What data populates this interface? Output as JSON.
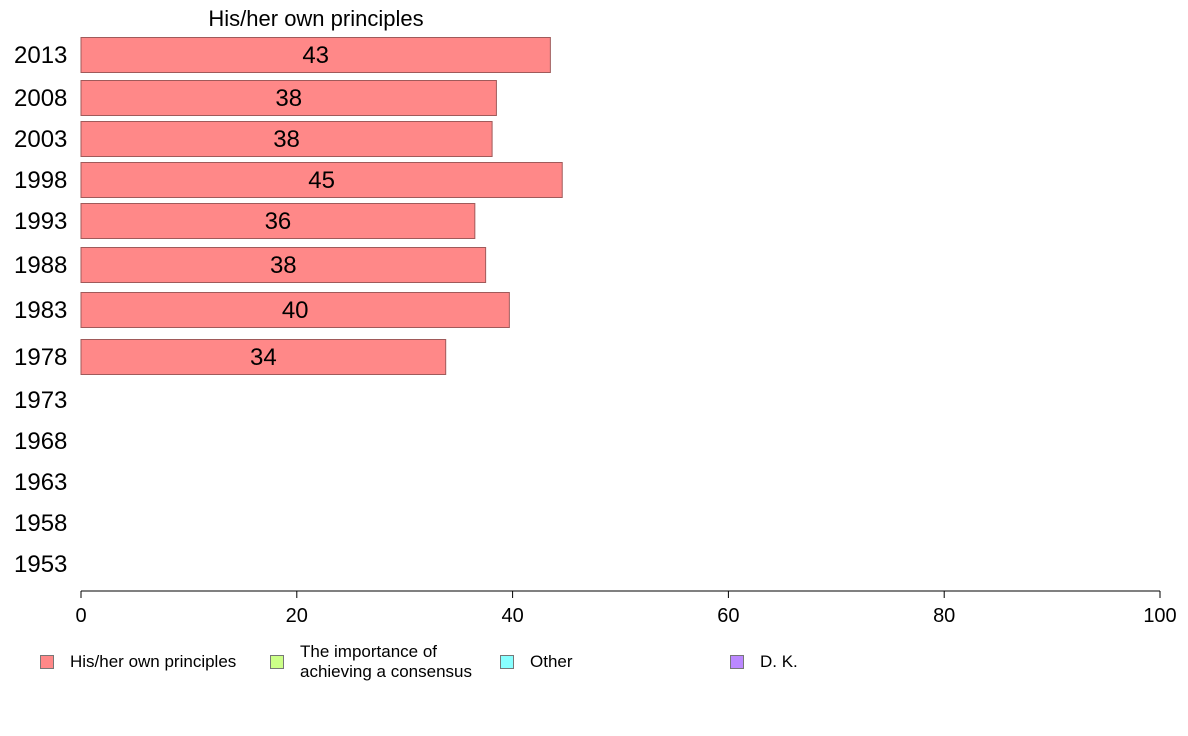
{
  "chart_data": {
    "type": "bar",
    "orientation": "horizontal",
    "title": "",
    "xlabel": "",
    "ylabel": "",
    "xlim": [
      0,
      100
    ],
    "x_ticks": [
      0,
      20,
      40,
      60,
      80,
      100
    ],
    "categories": [
      "2013",
      "2008",
      "2003",
      "1998",
      "1993",
      "1988",
      "1983",
      "1978",
      "1973",
      "1968",
      "1963",
      "1958",
      "1953"
    ],
    "series": [
      {
        "name": "His/her own principles",
        "color": "#ff8888",
        "values": [
          43.5,
          38.5,
          38.1,
          44.6,
          36.5,
          37.5,
          39.7,
          33.8,
          null,
          null,
          null,
          null,
          null
        ],
        "labels": [
          "43",
          "38",
          "38",
          "45",
          "36",
          "38",
          "40",
          "34",
          null,
          null,
          null,
          null,
          null
        ]
      }
    ],
    "grid": false,
    "legend_position": "bottom",
    "legend": [
      {
        "label": "His/her own principles",
        "color": "#ff8888"
      },
      {
        "label": "The importance of\nachieving a consensus",
        "color": "#ccff88"
      },
      {
        "label": "Other",
        "color": "#88ffff"
      },
      {
        "label": "D. K.",
        "color": "#bb88ff"
      }
    ]
  }
}
